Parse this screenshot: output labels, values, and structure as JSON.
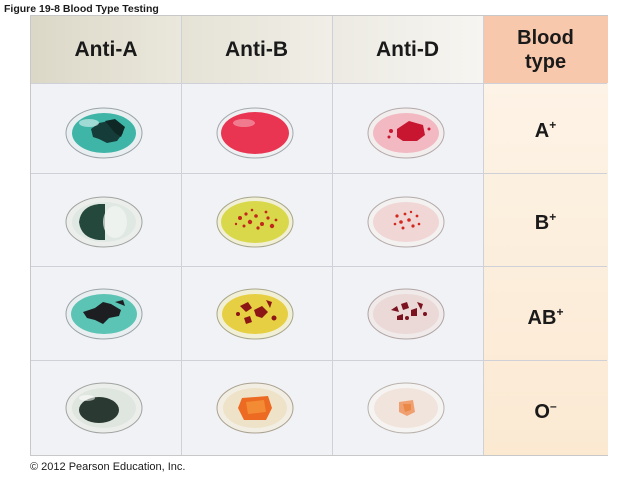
{
  "figure": {
    "caption": "Figure 19-8  Blood Type Testing",
    "copyright": "© 2012 Pearson Education, Inc."
  },
  "table": {
    "headers": {
      "anti_a": "Anti-A",
      "anti_b": "Anti-B",
      "anti_d": "Anti-D",
      "blood_type_line1": "Blood",
      "blood_type_line2": "type"
    },
    "rows": [
      {
        "type": "A",
        "rh": "+",
        "anti_a": "agglutinated",
        "anti_b": "no-agglutination",
        "anti_d": "agglutinated"
      },
      {
        "type": "B",
        "rh": "+",
        "anti_a": "no-agglutination",
        "anti_b": "agglutinated",
        "anti_d": "agglutinated"
      },
      {
        "type": "AB",
        "rh": "+",
        "anti_a": "agglutinated",
        "anti_b": "agglutinated",
        "anti_d": "agglutinated"
      },
      {
        "type": "O",
        "rh": "–",
        "anti_a": "no-agglutination",
        "anti_b": "no-agglutination",
        "anti_d": "no-agglutination"
      }
    ]
  },
  "colors": {
    "anti_a_reagent": "#3fb5a8",
    "anti_b_reagent": "#d9d84a",
    "blood_red": "#c0142a",
    "header_blood_type": "#f8c8ad"
  }
}
